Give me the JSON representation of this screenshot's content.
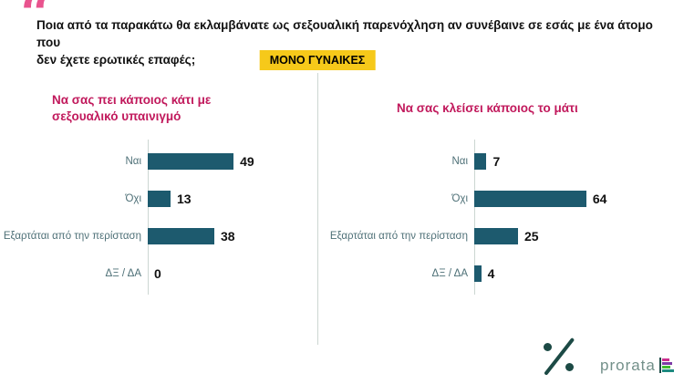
{
  "header": {
    "quote_icon": "“",
    "question_lines": [
      "Ποια από τα παρακάτω θα εκλαμβάνατε ως σεξουαλική παρενόχληση αν συνέβαινε σε εσάς με ένα άτομο που",
      "δεν έχετε ερωτικές επαφές;"
    ],
    "badge": "ΜΟΝΟ ΓΥΝΑΙΚΕΣ"
  },
  "chart_data": [
    {
      "type": "bar",
      "orientation": "horizontal",
      "title": "Να σας πει κάποιος κάτι με σεξουαλικό υπαινιγμό",
      "categories": [
        "Ναι",
        "Όχι",
        "Εξαρτάται από την περίσταση",
        "ΔΞ / ΔΑ"
      ],
      "values": [
        49,
        13,
        38,
        0
      ],
      "xlim": [
        0,
        100
      ],
      "value_labels": true,
      "grid": false,
      "legend": false
    },
    {
      "type": "bar",
      "orientation": "horizontal",
      "title": "Να σας κλείσει κάποιος το μάτι",
      "categories": [
        "Ναι",
        "Όχι",
        "Εξαρτάται από την περίσταση",
        "ΔΞ / ΔΑ"
      ],
      "values": [
        7,
        64,
        25,
        4
      ],
      "xlim": [
        0,
        100
      ],
      "value_labels": true,
      "grid": false,
      "legend": false
    }
  ],
  "colors": {
    "bar": "#1d5a6e",
    "chart_title": "#c1195c",
    "quote": "#e9538e",
    "badge_bg": "#f6c91a",
    "badge_text": "#000000",
    "category_label": "#4e7077",
    "value_label": "#111111",
    "divider": "#ccd6d2",
    "logo_mark": "#1c4a45",
    "brand_text": "#73908a"
  },
  "footer": {
    "percent_icon": "percent-logo",
    "brand": "prorata",
    "brand_bars": [
      {
        "color": "#cc2f8f",
        "width": 8
      },
      {
        "color": "#7d3ba6",
        "width": 11
      },
      {
        "color": "#3fba2f",
        "width": 9
      },
      {
        "color": "#1d8a80",
        "width": 13
      }
    ]
  }
}
